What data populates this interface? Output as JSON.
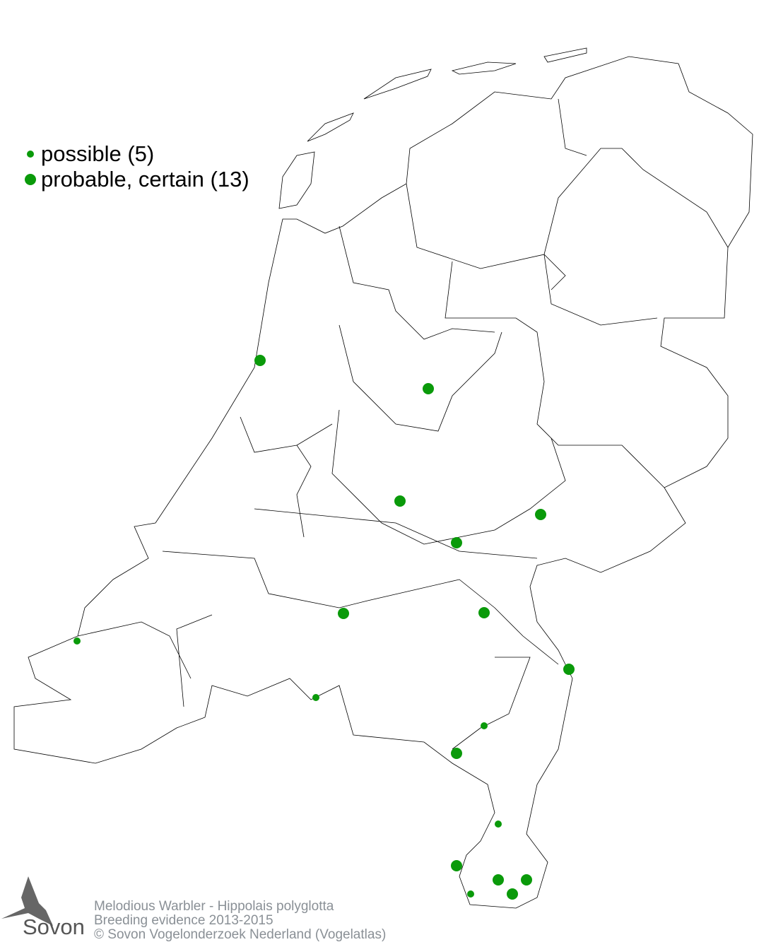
{
  "legend": {
    "items": [
      {
        "label": "possible (5)",
        "color": "#0a9a0a",
        "size": "small"
      },
      {
        "label": "probable, certain (13)",
        "color": "#0a9a0a",
        "size": "large"
      }
    ]
  },
  "footer": {
    "line1": "Melodious Warbler - Hippolais polyglotta",
    "line2": "Breeding evidence 2013-2015",
    "line3": "© Sovon Vogelonderzoek Nederland (Vogelatlas)"
  },
  "logo": {
    "text": "Sovon"
  },
  "colors": {
    "dots": "#0a9a0a",
    "borders": "#000000",
    "footer_text": "#8a9096"
  }
}
